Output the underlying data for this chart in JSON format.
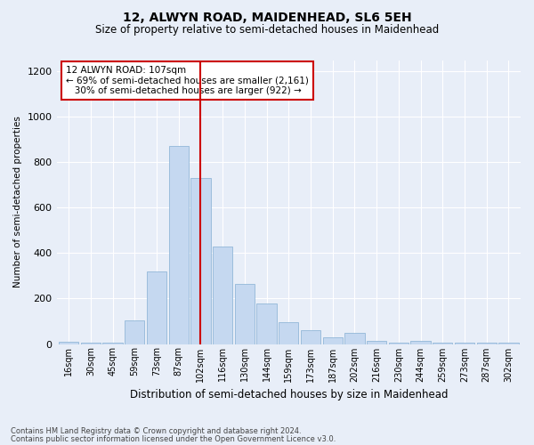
{
  "title": "12, ALWYN ROAD, MAIDENHEAD, SL6 5EH",
  "subtitle": "Size of property relative to semi-detached houses in Maidenhead",
  "xlabel": "Distribution of semi-detached houses by size in Maidenhead",
  "ylabel": "Number of semi-detached properties",
  "footnote1": "Contains HM Land Registry data © Crown copyright and database right 2024.",
  "footnote2": "Contains public sector information licensed under the Open Government Licence v3.0.",
  "annotation_line1": "12 ALWYN ROAD: 107sqm",
  "annotation_line2": "← 69% of semi-detached houses are smaller (2,161)",
  "annotation_line3": "   30% of semi-detached houses are larger (922) →",
  "property_size": 107,
  "bar_labels": [
    "16sqm",
    "30sqm",
    "45sqm",
    "59sqm",
    "73sqm",
    "87sqm",
    "102sqm",
    "116sqm",
    "130sqm",
    "144sqm",
    "159sqm",
    "173sqm",
    "187sqm",
    "202sqm",
    "216sqm",
    "230sqm",
    "244sqm",
    "259sqm",
    "273sqm",
    "287sqm",
    "302sqm"
  ],
  "bar_values": [
    10,
    5,
    5,
    105,
    320,
    870,
    730,
    430,
    265,
    180,
    95,
    60,
    30,
    50,
    15,
    5,
    15,
    5,
    5,
    5,
    5
  ],
  "bar_color": "#c5d8f0",
  "bar_edge_color": "#93b8d8",
  "vline_color": "#cc0000",
  "vline_x_index": 6,
  "ylim": [
    0,
    1250
  ],
  "yticks": [
    0,
    200,
    400,
    600,
    800,
    1000,
    1200
  ],
  "background_color": "#e8eef8",
  "plot_bg_color": "#e8eef8",
  "annotation_box_color": "#ffffff",
  "annotation_box_edge": "#cc0000"
}
